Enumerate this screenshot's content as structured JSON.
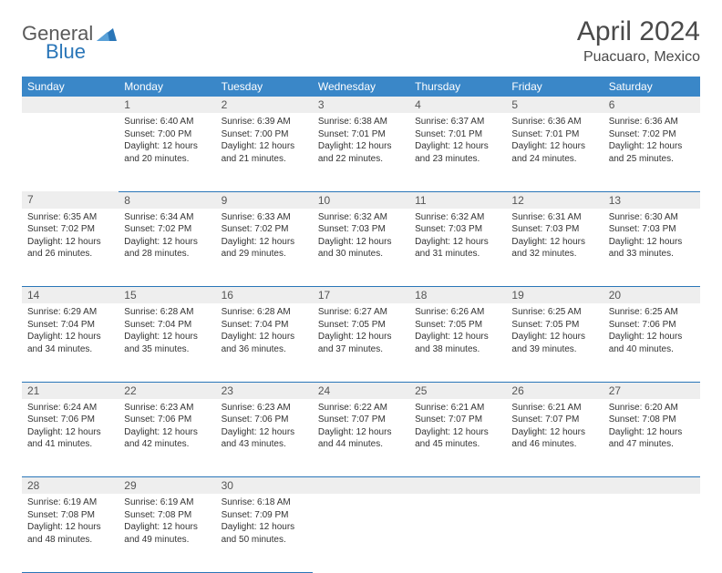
{
  "brand": {
    "name_part1": "General",
    "name_part2": "Blue"
  },
  "title": "April 2024",
  "location": "Puacuaro, Mexico",
  "header_bg": "#3a87c8",
  "rule_color": "#2a76b8",
  "daynum_bg": "#eeeeee",
  "weekdays": [
    "Sunday",
    "Monday",
    "Tuesday",
    "Wednesday",
    "Thursday",
    "Friday",
    "Saturday"
  ],
  "weeks": [
    [
      null,
      {
        "n": "1",
        "sr": "Sunrise: 6:40 AM",
        "ss": "Sunset: 7:00 PM",
        "d1": "Daylight: 12 hours",
        "d2": "and 20 minutes."
      },
      {
        "n": "2",
        "sr": "Sunrise: 6:39 AM",
        "ss": "Sunset: 7:00 PM",
        "d1": "Daylight: 12 hours",
        "d2": "and 21 minutes."
      },
      {
        "n": "3",
        "sr": "Sunrise: 6:38 AM",
        "ss": "Sunset: 7:01 PM",
        "d1": "Daylight: 12 hours",
        "d2": "and 22 minutes."
      },
      {
        "n": "4",
        "sr": "Sunrise: 6:37 AM",
        "ss": "Sunset: 7:01 PM",
        "d1": "Daylight: 12 hours",
        "d2": "and 23 minutes."
      },
      {
        "n": "5",
        "sr": "Sunrise: 6:36 AM",
        "ss": "Sunset: 7:01 PM",
        "d1": "Daylight: 12 hours",
        "d2": "and 24 minutes."
      },
      {
        "n": "6",
        "sr": "Sunrise: 6:36 AM",
        "ss": "Sunset: 7:02 PM",
        "d1": "Daylight: 12 hours",
        "d2": "and 25 minutes."
      }
    ],
    [
      {
        "n": "7",
        "sr": "Sunrise: 6:35 AM",
        "ss": "Sunset: 7:02 PM",
        "d1": "Daylight: 12 hours",
        "d2": "and 26 minutes."
      },
      {
        "n": "8",
        "sr": "Sunrise: 6:34 AM",
        "ss": "Sunset: 7:02 PM",
        "d1": "Daylight: 12 hours",
        "d2": "and 28 minutes."
      },
      {
        "n": "9",
        "sr": "Sunrise: 6:33 AM",
        "ss": "Sunset: 7:02 PM",
        "d1": "Daylight: 12 hours",
        "d2": "and 29 minutes."
      },
      {
        "n": "10",
        "sr": "Sunrise: 6:32 AM",
        "ss": "Sunset: 7:03 PM",
        "d1": "Daylight: 12 hours",
        "d2": "and 30 minutes."
      },
      {
        "n": "11",
        "sr": "Sunrise: 6:32 AM",
        "ss": "Sunset: 7:03 PM",
        "d1": "Daylight: 12 hours",
        "d2": "and 31 minutes."
      },
      {
        "n": "12",
        "sr": "Sunrise: 6:31 AM",
        "ss": "Sunset: 7:03 PM",
        "d1": "Daylight: 12 hours",
        "d2": "and 32 minutes."
      },
      {
        "n": "13",
        "sr": "Sunrise: 6:30 AM",
        "ss": "Sunset: 7:03 PM",
        "d1": "Daylight: 12 hours",
        "d2": "and 33 minutes."
      }
    ],
    [
      {
        "n": "14",
        "sr": "Sunrise: 6:29 AM",
        "ss": "Sunset: 7:04 PM",
        "d1": "Daylight: 12 hours",
        "d2": "and 34 minutes."
      },
      {
        "n": "15",
        "sr": "Sunrise: 6:28 AM",
        "ss": "Sunset: 7:04 PM",
        "d1": "Daylight: 12 hours",
        "d2": "and 35 minutes."
      },
      {
        "n": "16",
        "sr": "Sunrise: 6:28 AM",
        "ss": "Sunset: 7:04 PM",
        "d1": "Daylight: 12 hours",
        "d2": "and 36 minutes."
      },
      {
        "n": "17",
        "sr": "Sunrise: 6:27 AM",
        "ss": "Sunset: 7:05 PM",
        "d1": "Daylight: 12 hours",
        "d2": "and 37 minutes."
      },
      {
        "n": "18",
        "sr": "Sunrise: 6:26 AM",
        "ss": "Sunset: 7:05 PM",
        "d1": "Daylight: 12 hours",
        "d2": "and 38 minutes."
      },
      {
        "n": "19",
        "sr": "Sunrise: 6:25 AM",
        "ss": "Sunset: 7:05 PM",
        "d1": "Daylight: 12 hours",
        "d2": "and 39 minutes."
      },
      {
        "n": "20",
        "sr": "Sunrise: 6:25 AM",
        "ss": "Sunset: 7:06 PM",
        "d1": "Daylight: 12 hours",
        "d2": "and 40 minutes."
      }
    ],
    [
      {
        "n": "21",
        "sr": "Sunrise: 6:24 AM",
        "ss": "Sunset: 7:06 PM",
        "d1": "Daylight: 12 hours",
        "d2": "and 41 minutes."
      },
      {
        "n": "22",
        "sr": "Sunrise: 6:23 AM",
        "ss": "Sunset: 7:06 PM",
        "d1": "Daylight: 12 hours",
        "d2": "and 42 minutes."
      },
      {
        "n": "23",
        "sr": "Sunrise: 6:23 AM",
        "ss": "Sunset: 7:06 PM",
        "d1": "Daylight: 12 hours",
        "d2": "and 43 minutes."
      },
      {
        "n": "24",
        "sr": "Sunrise: 6:22 AM",
        "ss": "Sunset: 7:07 PM",
        "d1": "Daylight: 12 hours",
        "d2": "and 44 minutes."
      },
      {
        "n": "25",
        "sr": "Sunrise: 6:21 AM",
        "ss": "Sunset: 7:07 PM",
        "d1": "Daylight: 12 hours",
        "d2": "and 45 minutes."
      },
      {
        "n": "26",
        "sr": "Sunrise: 6:21 AM",
        "ss": "Sunset: 7:07 PM",
        "d1": "Daylight: 12 hours",
        "d2": "and 46 minutes."
      },
      {
        "n": "27",
        "sr": "Sunrise: 6:20 AM",
        "ss": "Sunset: 7:08 PM",
        "d1": "Daylight: 12 hours",
        "d2": "and 47 minutes."
      }
    ],
    [
      {
        "n": "28",
        "sr": "Sunrise: 6:19 AM",
        "ss": "Sunset: 7:08 PM",
        "d1": "Daylight: 12 hours",
        "d2": "and 48 minutes."
      },
      {
        "n": "29",
        "sr": "Sunrise: 6:19 AM",
        "ss": "Sunset: 7:08 PM",
        "d1": "Daylight: 12 hours",
        "d2": "and 49 minutes."
      },
      {
        "n": "30",
        "sr": "Sunrise: 6:18 AM",
        "ss": "Sunset: 7:09 PM",
        "d1": "Daylight: 12 hours",
        "d2": "and 50 minutes."
      },
      null,
      null,
      null,
      null
    ]
  ]
}
